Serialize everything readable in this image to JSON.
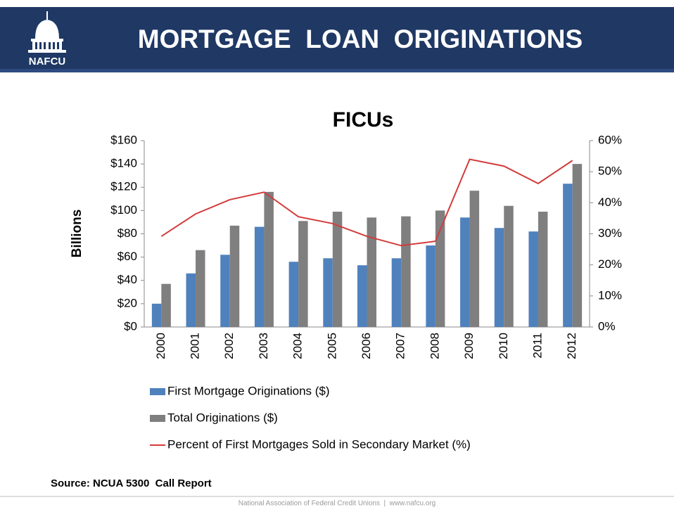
{
  "header": {
    "logo": "NAFCU",
    "title": "MORTGAGE  LOAN  ORIGINATIONS"
  },
  "chart_data": {
    "type": "bar",
    "title": "FICUs",
    "y_label": "Billions",
    "categories": [
      "2000",
      "2001",
      "2002",
      "2003",
      "2004",
      "2005",
      "2006",
      "2007",
      "2008",
      "2009",
      "2010",
      "2011",
      "2012"
    ],
    "series": [
      {
        "name": "First Mortgage Originations ($)",
        "color": "#4f81bd",
        "values": [
          20,
          46,
          62,
          86,
          56,
          59,
          53,
          59,
          70,
          94,
          85,
          82,
          123
        ]
      },
      {
        "name": "Total Originations ($)",
        "color": "#7f7f7f",
        "values": [
          37,
          66,
          87,
          116,
          91,
          99,
          94,
          95,
          100,
          117,
          104,
          99,
          140
        ]
      },
      {
        "name": "Percent of First Mortgages Sold in Secondary Market (%)",
        "color": "#d33b3b",
        "type": "line",
        "axis": "y2",
        "values": [
          29.2,
          36.4,
          41,
          43.4,
          35.5,
          33.3,
          29.2,
          26.2,
          27.6,
          54,
          51.8,
          46.2,
          53.6
        ]
      }
    ],
    "ylim": [
      0,
      160
    ],
    "yticks": [
      {
        "value": 0,
        "label": "$0"
      },
      {
        "value": 20,
        "label": "$20"
      },
      {
        "value": 40,
        "label": "$40"
      },
      {
        "value": 60,
        "label": "$60"
      },
      {
        "value": 80,
        "label": "$80"
      },
      {
        "value": 100,
        "label": "$100"
      },
      {
        "value": 120,
        "label": "$120"
      },
      {
        "value": 140,
        "label": "$140"
      },
      {
        "value": 160,
        "label": "$160"
      }
    ],
    "y2lim": [
      0,
      60
    ],
    "y2ticks": [
      {
        "value": 0,
        "label": "0%"
      },
      {
        "value": 10,
        "label": "10%"
      },
      {
        "value": 20,
        "label": "20%"
      },
      {
        "value": 30,
        "label": "30%"
      },
      {
        "value": 40,
        "label": "40%"
      },
      {
        "value": 50,
        "label": "50%"
      },
      {
        "value": 60,
        "label": "60%"
      }
    ],
    "grid": false,
    "legend": "bottom"
  },
  "source": "Source: NCUA 5300  Call Report",
  "footer": "National Association of Federal Credit Unions  |  www.nafcu.org"
}
